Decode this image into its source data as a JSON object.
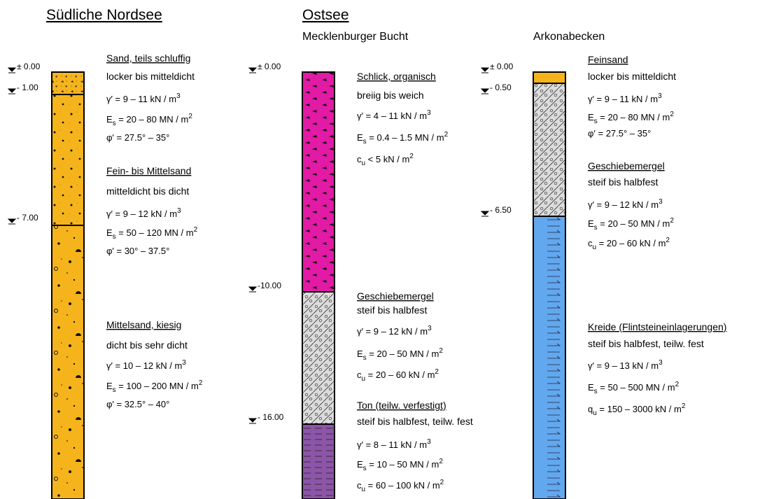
{
  "titles": [
    "Südliche Nordsee",
    "Ostsee"
  ],
  "profiles": [
    {
      "depths": [
        "± 0.00",
        "- 1.00",
        "- 7.00"
      ],
      "layers": [
        {
          "name": "Sand, teils schluffig",
          "state": "locker bis mitteldicht",
          "props": [
            {
              "sym": "γ′",
              "text": " = 9 – 11 kN / m",
              "sup": "3"
            },
            {
              "sym": "E",
              "sub": "s",
              "text": " = 20 – 80 MN / m",
              "sup": "2"
            },
            {
              "sym": "φ′",
              "text": " = 27.5° – 35°"
            }
          ]
        },
        {
          "name": "Fein- bis Mittelsand",
          "state": "mitteldicht bis dicht",
          "props": [
            {
              "sym": "γ′",
              "text": " = 9 – 12 kN / m",
              "sup": "3"
            },
            {
              "sym": "E",
              "sub": "s",
              "text": " = 50 – 120 MN / m",
              "sup": "2"
            },
            {
              "sym": "φ′",
              "text": " = 30° – 37.5°"
            }
          ]
        },
        {
          "name": "Mittelsand, kiesig",
          "state": "dicht bis sehr dicht",
          "props": [
            {
              "sym": "γ′",
              "text": " = 10 – 12 kN / m",
              "sup": "3"
            },
            {
              "sym": "E",
              "sub": "s",
              "text": " = 100 – 200 MN / m",
              "sup": "2"
            },
            {
              "sym": "φ′",
              "text": " = 32.5° – 40°"
            }
          ]
        }
      ]
    },
    {
      "name": "Mecklenburger Bucht",
      "depths": [
        "± 0.00",
        "-10.00",
        "- 16.00"
      ],
      "layers": [
        {
          "name": "Schlick, organisch",
          "state": "breiig bis weich",
          "props": [
            {
              "sym": "γ′",
              "text": " = 4 – 11 kN / m",
              "sup": "3"
            },
            {
              "sym": "E",
              "sub": "s",
              "text": " = 0.4 – 1.5 MN / m",
              "sup": "2"
            },
            {
              "sym": "c",
              "sub": "u",
              "text": " < 5 kN / m",
              "sup": "2"
            }
          ]
        },
        {
          "name": "Geschiebemergel",
          "state": "steif bis halbfest",
          "props": [
            {
              "sym": "γ′",
              "text": " = 9 – 12 kN / m",
              "sup": "3"
            },
            {
              "sym": "E",
              "sub": "s",
              "text": " = 20 – 50 MN / m",
              "sup": "2"
            },
            {
              "sym": "c",
              "sub": "u",
              "text": " = 20 – 60 kN / m",
              "sup": "2"
            }
          ]
        },
        {
          "name": "Ton (teilw. verfestigt)",
          "state": "steif bis halbfest, teilw. fest",
          "props": [
            {
              "sym": "γ′",
              "text": " = 8 – 11 kN / m",
              "sup": "3"
            },
            {
              "sym": "E",
              "sub": "s",
              "text": " = 10 – 50 MN / m",
              "sup": "2"
            },
            {
              "sym": "c",
              "sub": "u",
              "text": " = 60 – 100 kN / m",
              "sup": "2"
            }
          ]
        }
      ]
    },
    {
      "name": "Arkonabecken",
      "depths": [
        "± 0.00",
        "- 0.50",
        "- 6.50"
      ],
      "layers": [
        {
          "name": "Feinsand",
          "state": "locker bis mitteldicht",
          "props": [
            {
              "sym": "γ′",
              "text": " = 9 – 11 kN / m",
              "sup": "3"
            },
            {
              "sym": "E",
              "sub": "s",
              "text": " = 20 – 80 MN / m",
              "sup": "2"
            },
            {
              "sym": "φ′",
              "text": " = 27.5° – 35°"
            }
          ]
        },
        {
          "name": "Geschiebemergel",
          "state": "steif bis halbfest",
          "props": [
            {
              "sym": "γ′",
              "text": " = 9 – 12 kN / m",
              "sup": "3"
            },
            {
              "sym": "E",
              "sub": "s",
              "text": " = 20 – 50 MN / m",
              "sup": "2"
            },
            {
              "sym": "c",
              "sub": "u",
              "text": " = 20 – 60 kN / m",
              "sup": "2"
            }
          ]
        },
        {
          "name": "Kreide (Flintsteineinlagerungen)",
          "state": "steif bis halbfest, teilw. fest",
          "props": [
            {
              "sym": "γ′",
              "text": " = 9 – 13 kN / m",
              "sup": "3"
            },
            {
              "sym": "E",
              "sub": "s",
              "text": " = 50 – 500 MN / m",
              "sup": "2"
            },
            {
              "sym": "q",
              "sub": "u",
              "text": " = 150 – 3000 kN / m",
              "sup": "2"
            }
          ]
        }
      ]
    }
  ]
}
